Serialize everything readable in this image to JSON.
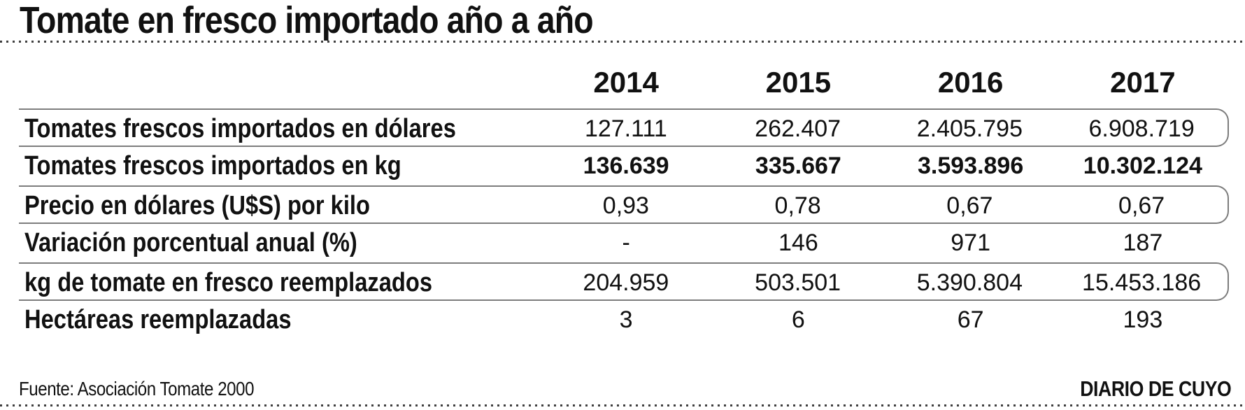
{
  "title": "Tomate en fresco importado año a año",
  "footer": {
    "source": "Fuente: Asociación Tomate 2000",
    "credit": "DIARIO DE CUYO"
  },
  "colors": {
    "text": "#111111",
    "rule_gray": "#7d7d7d",
    "dotted_rule": "#3f3f3f",
    "background": "#ffffff"
  },
  "chart_data": {
    "type": "table",
    "title": "Tomate en fresco importado año a año",
    "columns": [
      "2014",
      "2015",
      "2016",
      "2017"
    ],
    "rows": [
      {
        "label": "Tomates frescos importados en dólares",
        "values": [
          "127.111",
          "262.407",
          "2.405.795",
          "6.908.719"
        ]
      },
      {
        "label": "Tomates frescos importados en kg",
        "values": [
          "136.639",
          "335.667",
          "3.593.896",
          "10.302.124"
        ]
      },
      {
        "label": "Precio en dólares (U$S) por kilo",
        "values": [
          "0,93",
          "0,78",
          "0,67",
          "0,67"
        ]
      },
      {
        "label": "Variación porcentual anual (%)",
        "values": [
          "-",
          "146",
          "971",
          "187"
        ]
      },
      {
        "label": "kg de tomate en fresco reemplazados",
        "values": [
          "204.959",
          "503.501",
          "5.390.804",
          "15.453.186"
        ]
      },
      {
        "label": "Hectáreas reemplazadas",
        "values": [
          "3",
          "6",
          "67",
          "193"
        ]
      }
    ],
    "source": "Fuente: Asociación Tomate 2000",
    "credit": "DIARIO DE CUYO"
  }
}
